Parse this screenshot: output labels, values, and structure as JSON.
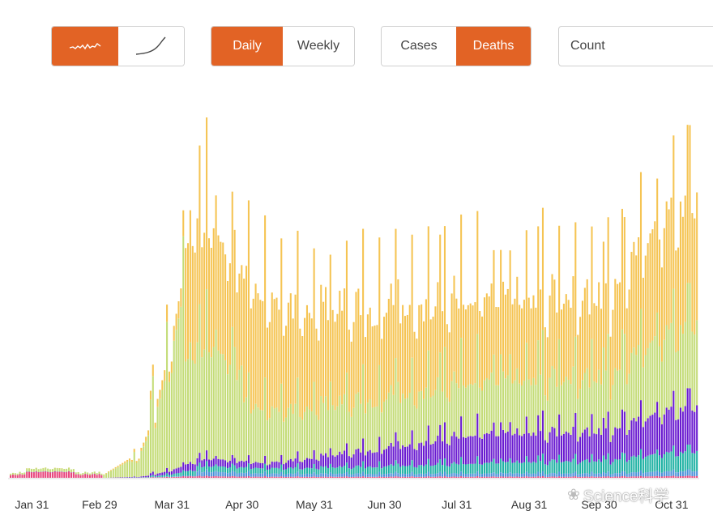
{
  "controls": {
    "view_modes": [
      {
        "icon": "daily-squiggle-icon",
        "active": true
      },
      {
        "icon": "cumulative-curve-icon",
        "active": false
      }
    ],
    "frequency": [
      {
        "label": "Daily",
        "active": true
      },
      {
        "label": "Weekly",
        "active": false
      }
    ],
    "metric": [
      {
        "label": "Cases",
        "active": false
      },
      {
        "label": "Deaths",
        "active": true
      }
    ],
    "scale_select": {
      "value": "Count"
    },
    "accent_color": "#e26325"
  },
  "watermark": {
    "text": "Science科学",
    "icon": "wechat-icon"
  },
  "chart_data": {
    "type": "bar",
    "stacked": true,
    "title": "",
    "xlabel": "",
    "ylabel": "",
    "x_tick_labels": [
      "Jan 31",
      "Feb 29",
      "Mar 31",
      "Apr 30",
      "May 31",
      "Jun 30",
      "Jul 31",
      "Aug 31",
      "Sep 30",
      "Oct 31"
    ],
    "date_range": [
      "2020-01-22",
      "2020-11-11"
    ],
    "bar_count": 295,
    "y_axis_shown": false,
    "grid": false,
    "series": [
      {
        "color": "#e8457c"
      },
      {
        "color": "#4a90d9"
      },
      {
        "color": "#20b2a4"
      },
      {
        "color": "#6a1bd0"
      },
      {
        "color": "#c4dc78"
      },
      {
        "color": "#f5c453"
      }
    ],
    "description_values_relative": {
      "peak_total_mid_april": 1.0,
      "typical_total_summer": 0.52,
      "late_total_november": 0.78
    }
  }
}
